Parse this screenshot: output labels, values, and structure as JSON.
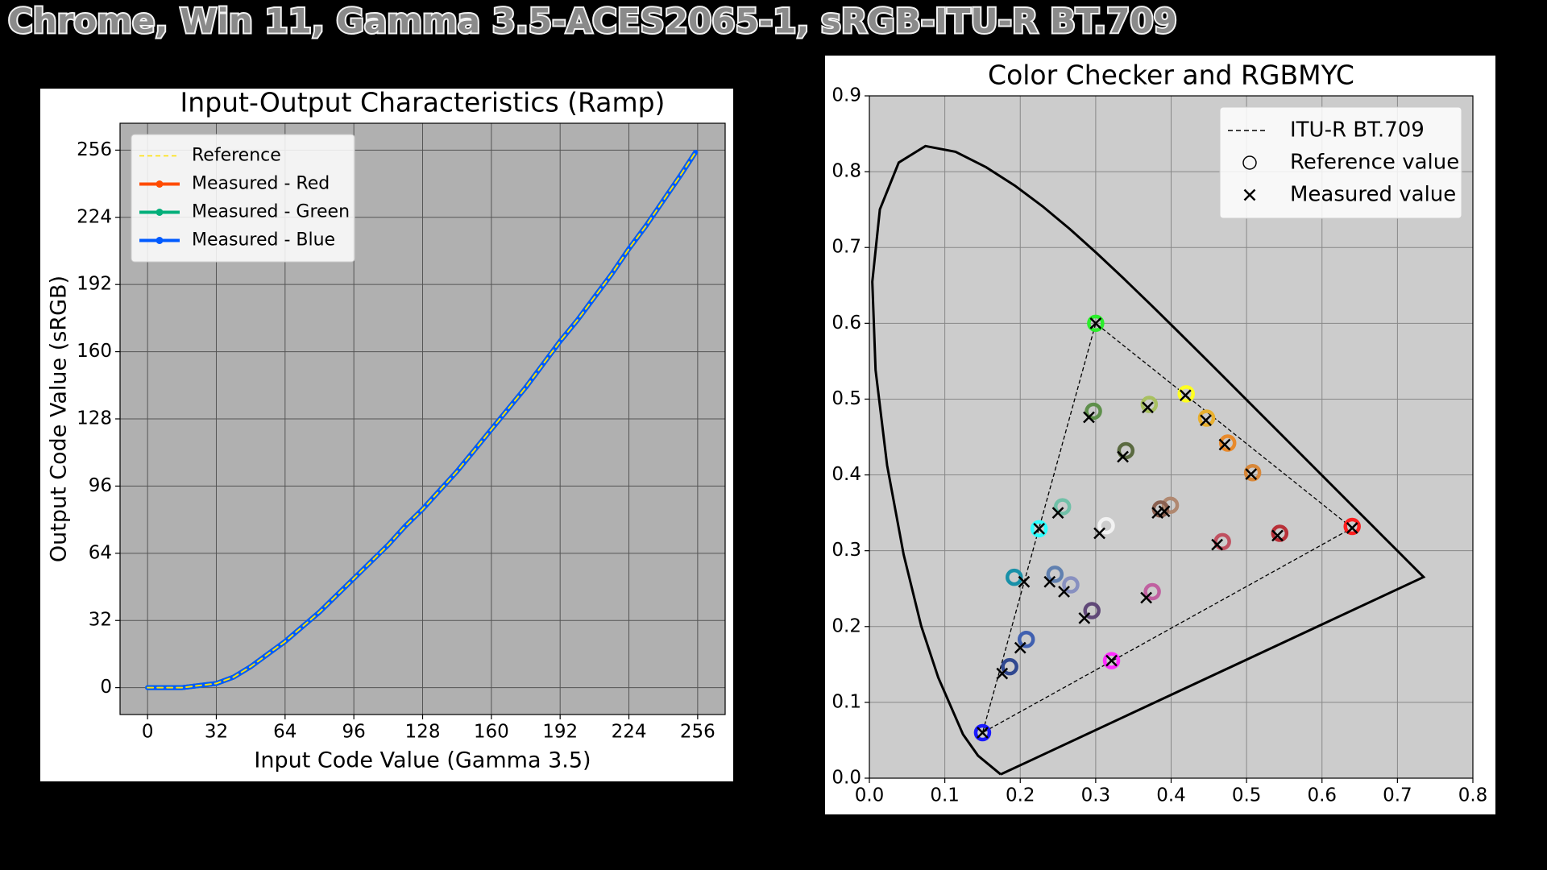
{
  "title": "Chrome, Win 11, Gamma 3.5-ACES2065-1, sRGB-ITU-R BT.709",
  "chart_data": [
    {
      "type": "line",
      "title": "Input-Output Characteristics (Ramp)",
      "x_label": "Input Code Value (Gamma 3.5)",
      "y_label": "Output Code Value (sRGB)",
      "xlim": [
        -12.8,
        268.8
      ],
      "ylim": [
        -12.8,
        268.8
      ],
      "xticks": [
        0,
        32,
        64,
        96,
        128,
        160,
        192,
        224,
        256
      ],
      "yticks": [
        0,
        32,
        64,
        96,
        128,
        160,
        192,
        224,
        256
      ],
      "grid": true,
      "background": "#b0b0b0",
      "grid_color": "#555555",
      "legend": "upper-left",
      "x": [
        0,
        8,
        16,
        24,
        32,
        40,
        48,
        56,
        64,
        72,
        80,
        88,
        96,
        104,
        112,
        120,
        128,
        136,
        144,
        152,
        160,
        168,
        176,
        184,
        192,
        200,
        208,
        216,
        224,
        232,
        240,
        248,
        255
      ],
      "series": [
        {
          "name": "Reference",
          "color": "#ffe100",
          "dash": true,
          "values": [
            0,
            0,
            0,
            1,
            2,
            5,
            10,
            16,
            22,
            29,
            36,
            44,
            52,
            60,
            68,
            77,
            85,
            94,
            103,
            113,
            123,
            133,
            143,
            154,
            165,
            175,
            186,
            197,
            209,
            220,
            232,
            244,
            255
          ]
        },
        {
          "name": "Measured - Red",
          "color": "#ff4b00",
          "dash": false,
          "values": [
            0,
            0,
            0,
            1,
            2,
            5,
            10,
            16,
            22,
            29,
            36,
            44,
            52,
            60,
            68,
            77,
            85,
            94,
            103,
            113,
            123,
            133,
            143,
            154,
            165,
            175,
            186,
            197,
            209,
            220,
            232,
            244,
            255
          ]
        },
        {
          "name": "Measured - Green",
          "color": "#03af7a",
          "dash": false,
          "values": [
            0,
            0,
            0,
            1,
            2,
            5,
            10,
            16,
            22,
            29,
            36,
            44,
            52,
            60,
            68,
            77,
            85,
            94,
            103,
            113,
            123,
            133,
            143,
            154,
            165,
            175,
            186,
            197,
            209,
            220,
            232,
            244,
            255
          ]
        },
        {
          "name": "Measured - Blue",
          "color": "#005aff",
          "dash": false,
          "values": [
            0,
            0,
            0,
            1,
            2,
            5,
            10,
            16,
            22,
            29,
            36,
            44,
            52,
            60,
            68,
            77,
            85,
            94,
            103,
            113,
            123,
            133,
            143,
            154,
            165,
            175,
            186,
            197,
            209,
            220,
            232,
            244,
            255
          ]
        }
      ]
    },
    {
      "type": "scatter",
      "title": "Color Checker and RGBMYC",
      "xlim": [
        0,
        0.8
      ],
      "ylim": [
        0,
        0.9
      ],
      "xticks": [
        {
          "value": 0,
          "label": "0.0"
        },
        0.1,
        0.2,
        0.3,
        0.4,
        0.5,
        0.6,
        0.7,
        0.8
      ],
      "yticks": [
        {
          "value": 0,
          "label": "0.0"
        },
        0.1,
        0.2,
        0.3,
        0.4,
        0.5,
        0.6,
        0.7,
        0.8,
        0.9
      ],
      "grid": true,
      "background": "#cccccc",
      "grid_color": "#888888",
      "legend": "upper-right",
      "spectral_locus": {
        "color": "#000000",
        "x": [
          0.1741,
          0.144,
          0.1241,
          0.0913,
          0.0687,
          0.0454,
          0.0235,
          0.0082,
          0.0039,
          0.0139,
          0.0389,
          0.0743,
          0.1142,
          0.1547,
          0.1929,
          0.2296,
          0.2658,
          0.3016,
          0.3373,
          0.3731,
          0.4087,
          0.4441,
          0.4788,
          0.5125,
          0.5448,
          0.5752,
          0.6029,
          0.627,
          0.6482,
          0.6658,
          0.6801,
          0.6915,
          0.7006,
          0.7079,
          0.714,
          0.7347,
          0.1741
        ],
        "y": [
          0.005,
          0.0297,
          0.0578,
          0.1327,
          0.2007,
          0.295,
          0.4127,
          0.5384,
          0.6548,
          0.7502,
          0.812,
          0.8338,
          0.8262,
          0.8059,
          0.7816,
          0.7543,
          0.7243,
          0.6923,
          0.6589,
          0.6245,
          0.5896,
          0.5547,
          0.5202,
          0.4866,
          0.4544,
          0.4242,
          0.3965,
          0.3725,
          0.3514,
          0.334,
          0.3197,
          0.3083,
          0.2993,
          0.292,
          0.2859,
          0.2653,
          0.005
        ]
      },
      "series": [
        {
          "name": "ITU-R BT.709",
          "marker": "line",
          "color": "#000000",
          "x": [
            0.64,
            0.3,
            0.15,
            0.64
          ],
          "y": [
            0.33,
            0.6,
            0.06,
            0.33
          ]
        },
        {
          "name": "Reference value",
          "marker": "circle",
          "color": "#000000",
          "x": [
            0.64,
            0.3,
            0.15,
            0.42,
            0.321,
            0.225,
            0.297,
            0.371,
            0.447,
            0.475,
            0.34,
            0.508,
            0.256,
            0.399,
            0.386,
            0.314,
            0.468,
            0.544,
            0.192,
            0.246,
            0.267,
            0.375,
            0.295,
            0.208,
            0.186
          ],
          "y": [
            0.332,
            0.6,
            0.06,
            0.507,
            0.155,
            0.329,
            0.484,
            0.493,
            0.475,
            0.442,
            0.432,
            0.403,
            0.358,
            0.36,
            0.355,
            0.333,
            0.312,
            0.323,
            0.265,
            0.269,
            0.255,
            0.246,
            0.221,
            0.183,
            0.147
          ],
          "colors": [
            "#ff1f1f",
            "#2bee2b",
            "#1a1aff",
            "#ffff20",
            "#ff2bff",
            "#2bffff",
            "#5e8f4b",
            "#a8c060",
            "#e8b030",
            "#e88a2c",
            "#5a6a40",
            "#d8883a",
            "#70c0a8",
            "#b08870",
            "#8a6050",
            "#f2f2f2",
            "#c05060",
            "#b83038",
            "#1890a8",
            "#6080b0",
            "#8890c0",
            "#c060a0",
            "#604878",
            "#4060b0",
            "#304890"
          ]
        },
        {
          "name": "Measured value",
          "marker": "x",
          "color": "#000000",
          "x": [
            0.64,
            0.3,
            0.15,
            0.419,
            0.321,
            0.225,
            0.291,
            0.369,
            0.446,
            0.471,
            0.336,
            0.506,
            0.25,
            0.391,
            0.382,
            0.305,
            0.461,
            0.541,
            0.205,
            0.239,
            0.258,
            0.367,
            0.285,
            0.2,
            0.176
          ],
          "y": [
            0.33,
            0.6,
            0.06,
            0.505,
            0.155,
            0.329,
            0.476,
            0.489,
            0.472,
            0.44,
            0.424,
            0.401,
            0.35,
            0.352,
            0.35,
            0.323,
            0.308,
            0.32,
            0.259,
            0.259,
            0.246,
            0.238,
            0.211,
            0.172,
            0.138
          ]
        }
      ]
    }
  ]
}
